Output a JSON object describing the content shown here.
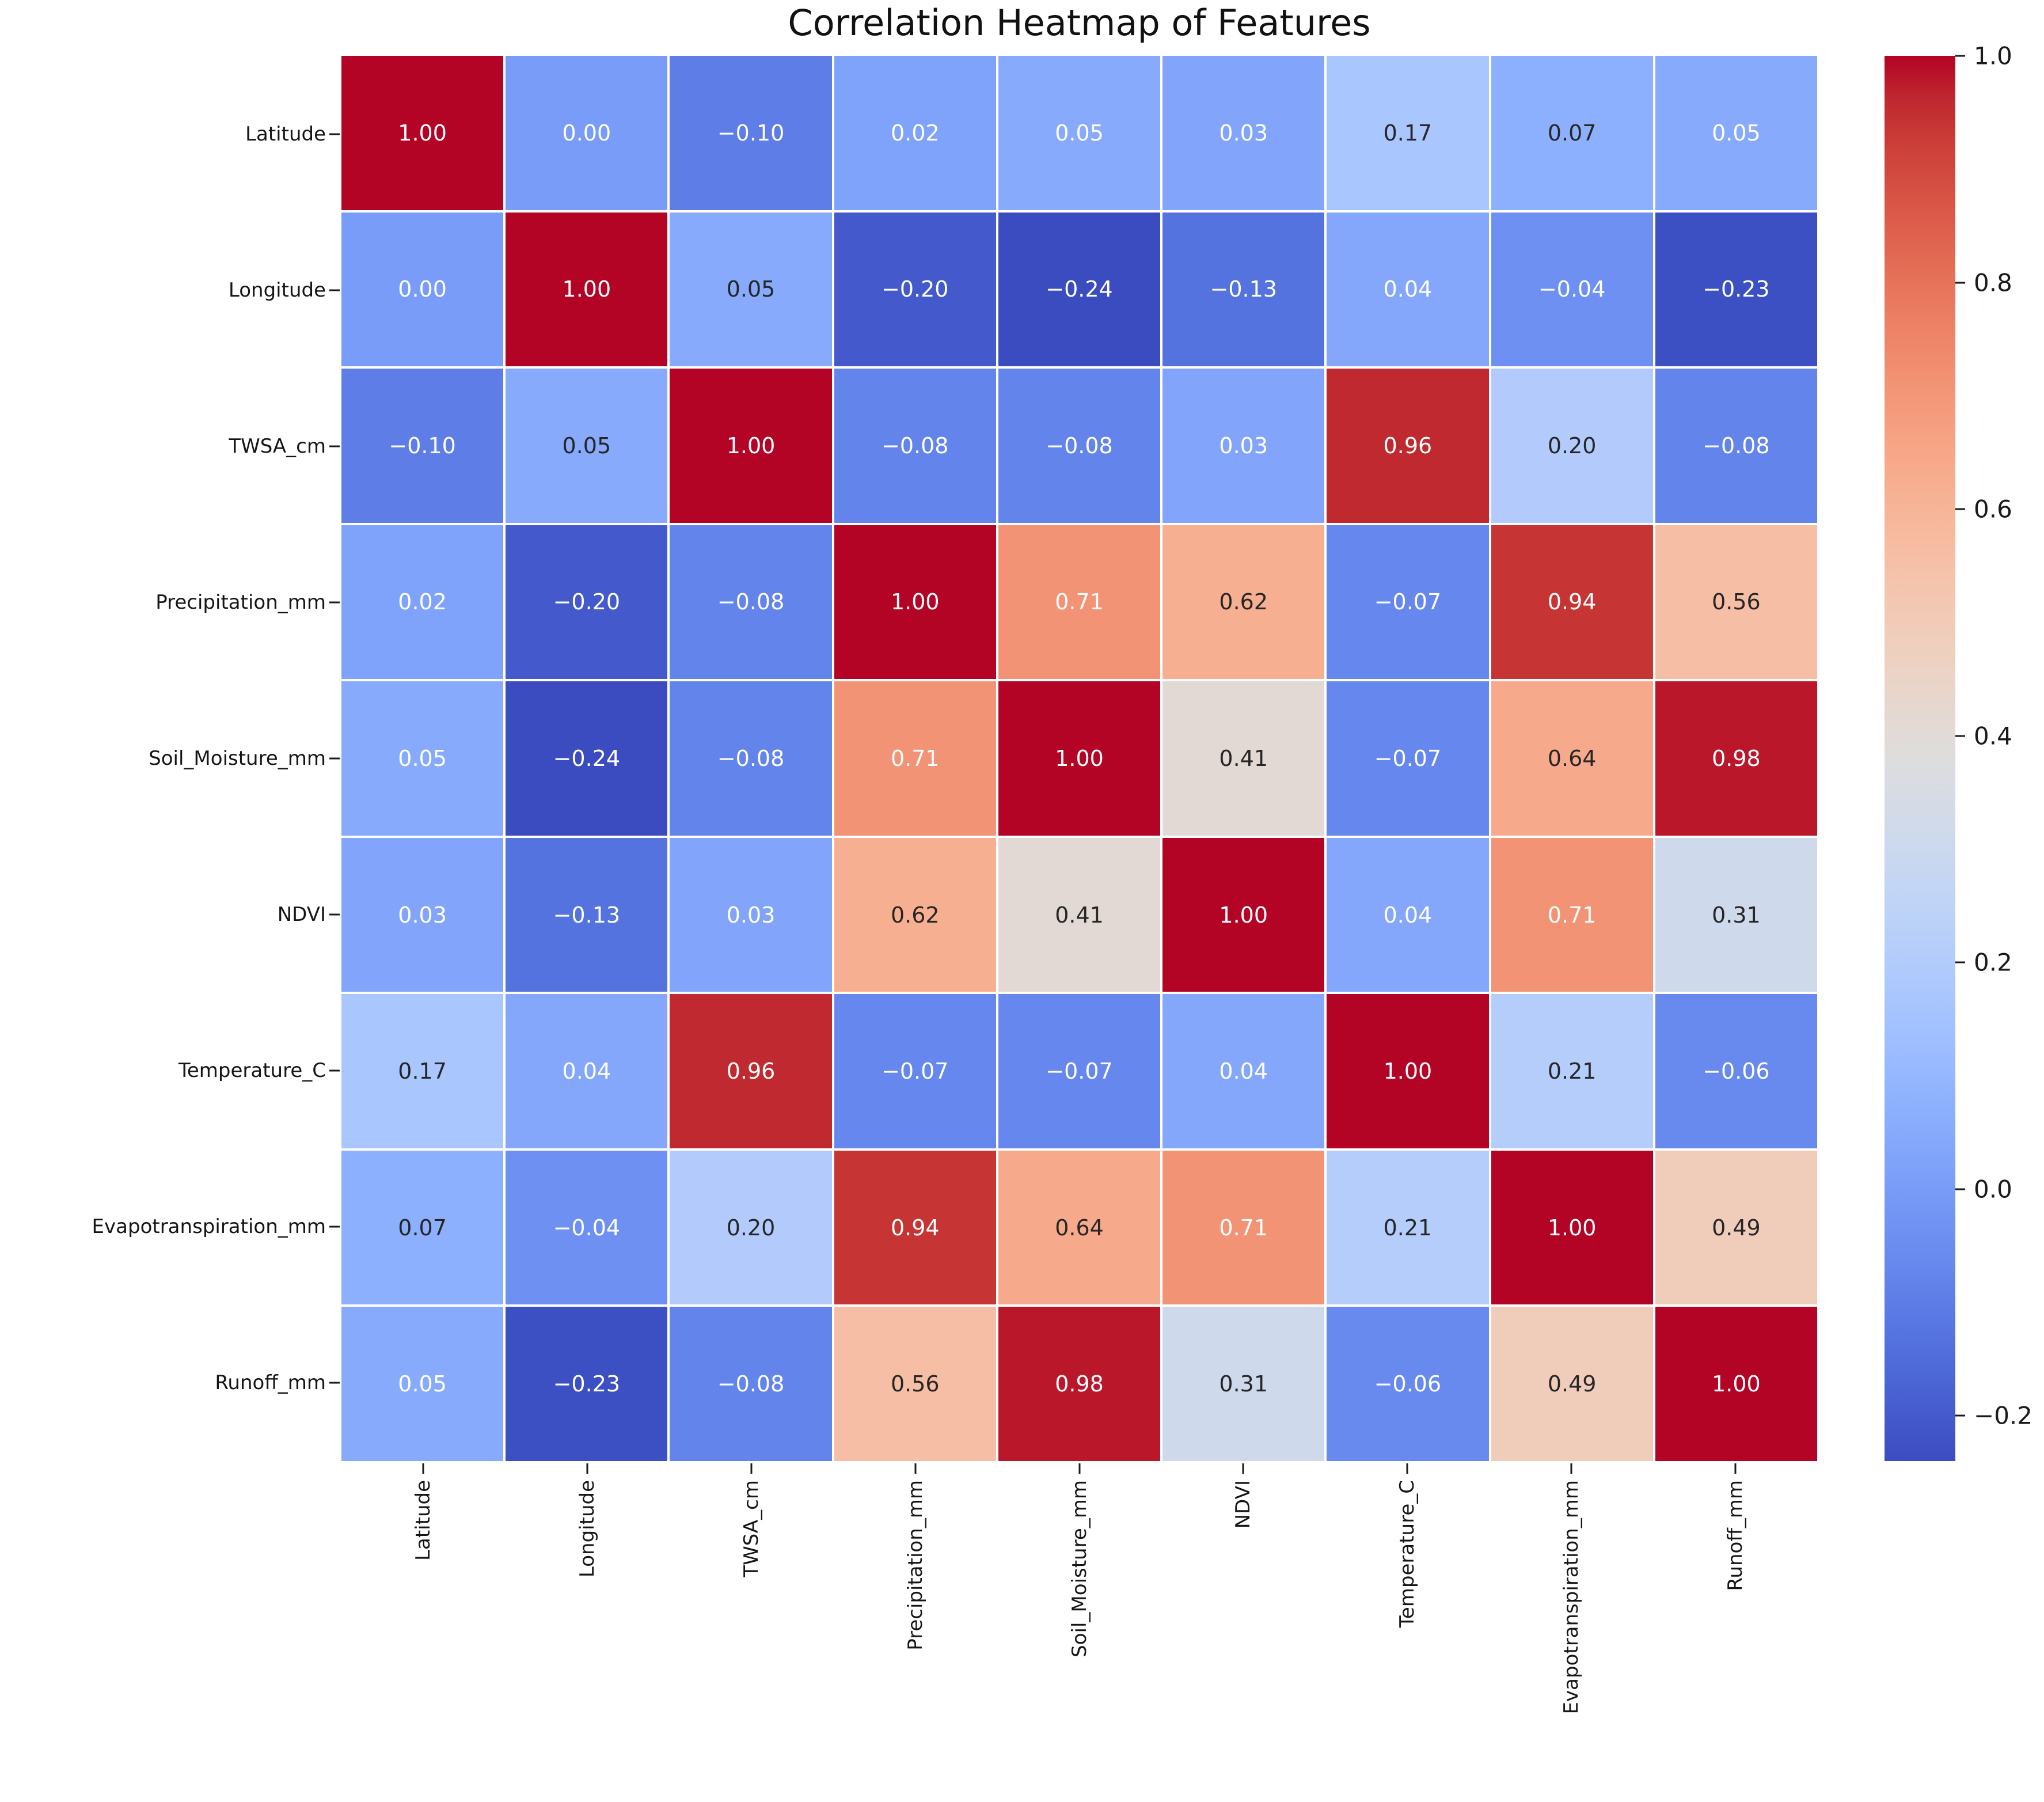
{
  "page": {
    "background": "#ffffff"
  },
  "chart_data": {
    "type": "heatmap",
    "title": "Correlation Heatmap of Features",
    "features": [
      "Latitude",
      "Longitude",
      "TWSA_cm",
      "Precipitation_mm",
      "Soil_Moisture_mm",
      "NDVI",
      "Temperature_C",
      "Evapotranspiration_mm",
      "Runoff_mm"
    ],
    "matrix": [
      [
        1.0,
        0.0,
        -0.1,
        0.02,
        0.05,
        0.03,
        0.17,
        0.07,
        0.05
      ],
      [
        0.0,
        1.0,
        0.05,
        -0.2,
        -0.24,
        -0.13,
        0.04,
        -0.04,
        -0.23
      ],
      [
        -0.1,
        0.05,
        1.0,
        -0.08,
        -0.08,
        0.03,
        0.96,
        0.2,
        -0.08
      ],
      [
        0.02,
        -0.2,
        -0.08,
        1.0,
        0.71,
        0.62,
        -0.07,
        0.94,
        0.56
      ],
      [
        0.05,
        -0.24,
        -0.08,
        0.71,
        1.0,
        0.41,
        -0.07,
        0.64,
        0.98
      ],
      [
        0.03,
        -0.13,
        0.03,
        0.62,
        0.41,
        1.0,
        0.04,
        0.71,
        0.31
      ],
      [
        0.17,
        0.04,
        0.96,
        -0.07,
        -0.07,
        0.04,
        1.0,
        0.21,
        -0.06
      ],
      [
        0.07,
        -0.04,
        0.2,
        0.94,
        0.64,
        0.71,
        0.21,
        1.0,
        0.49
      ],
      [
        0.05,
        -0.23,
        -0.08,
        0.56,
        0.98,
        0.31,
        -0.06,
        0.49,
        1.0
      ]
    ],
    "value_format": ".2f",
    "annot_text_colors": [
      [
        "w",
        "w",
        "w",
        "w",
        "w",
        "w",
        "k",
        "k",
        "w"
      ],
      [
        "w",
        "w",
        "k",
        "w",
        "w",
        "w",
        "w",
        "w",
        "w"
      ],
      [
        "w",
        "k",
        "w",
        "w",
        "w",
        "w",
        "w",
        "k",
        "w"
      ],
      [
        "w",
        "w",
        "w",
        "w",
        "w",
        "k",
        "w",
        "w",
        "k"
      ],
      [
        "w",
        "w",
        "w",
        "w",
        "w",
        "k",
        "w",
        "k",
        "w"
      ],
      [
        "w",
        "w",
        "w",
        "k",
        "k",
        "w",
        "w",
        "w",
        "k"
      ],
      [
        "k",
        "w",
        "w",
        "w",
        "w",
        "w",
        "w",
        "k",
        "w"
      ],
      [
        "k",
        "w",
        "k",
        "w",
        "k",
        "w",
        "k",
        "w",
        "k"
      ],
      [
        "w",
        "w",
        "w",
        "k",
        "w",
        "k",
        "w",
        "k",
        "w"
      ]
    ],
    "colormap": "coolwarm",
    "vmin": -0.24,
    "vmax": 1.0,
    "grid_lines": true,
    "legend_position": "right",
    "colorbar": {
      "ticks": [
        {
          "label": "1.0",
          "value": 1.0
        },
        {
          "label": "0.8",
          "value": 0.8
        },
        {
          "label": "0.6",
          "value": 0.6
        },
        {
          "label": "0.4",
          "value": 0.4
        },
        {
          "label": "0.2",
          "value": 0.2
        },
        {
          "label": "0.0",
          "value": 0.0
        },
        {
          "label": "−0.2",
          "value": -0.2
        }
      ]
    },
    "colors": {
      "max": "#b40426",
      "mid": "#dddddd",
      "min": "#3b4cc0",
      "annot_dark": "#262626",
      "annot_light": "#ffffff",
      "tick": "#1a1a1a",
      "gridline": "#ffffff"
    }
  }
}
